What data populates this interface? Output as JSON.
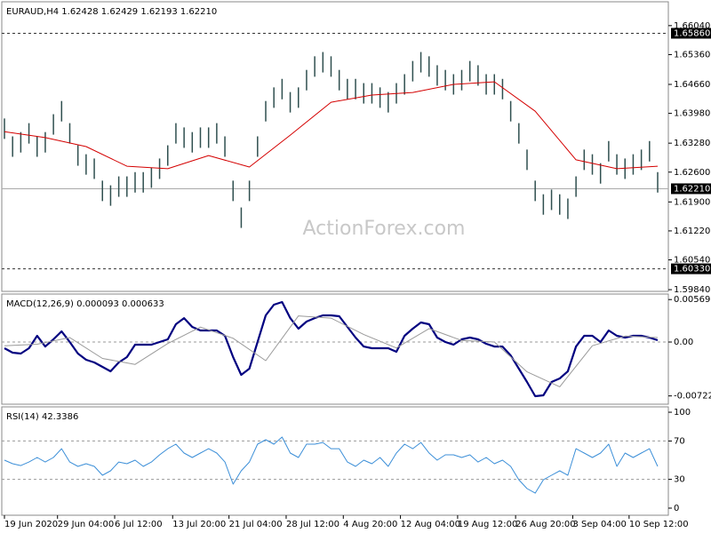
{
  "chart_data": [
    {
      "type": "ohlc",
      "title": "EURAUD,H4  1.62428 1.62429 1.62193 1.62210",
      "watermark": "ActionForex.com",
      "color": "#2f4f4f",
      "xlim": [
        0,
        80
      ],
      "ylim": [
        1.598,
        1.666
      ],
      "yticks": [
        {
          "value": 1.6604,
          "label": "1.66040"
        },
        {
          "value": 1.6536,
          "label": "1.65360"
        },
        {
          "value": 1.6466,
          "label": "1.64660"
        },
        {
          "value": 1.6398,
          "label": "1.63980"
        },
        {
          "value": 1.6328,
          "label": "1.63280"
        },
        {
          "value": 1.626,
          "label": "1.62600"
        },
        {
          "value": 1.619,
          "label": "1.61900"
        },
        {
          "value": 1.6122,
          "label": "1.61220"
        },
        {
          "value": 1.6054,
          "label": "1.60540"
        },
        {
          "value": 1.5984,
          "label": "1.59840"
        }
      ],
      "levels": [
        {
          "value": 1.6586,
          "label": "1.65860"
        },
        {
          "value": 1.6033,
          "label": "1.60330"
        }
      ],
      "current": {
        "value": 1.6221,
        "label": "1.62210"
      },
      "high": [
        1.6386,
        1.6344,
        1.6354,
        1.6375,
        1.6344,
        1.6354,
        1.6396,
        1.6427,
        1.6375,
        1.6323,
        1.6302,
        1.6292,
        1.624,
        1.6229,
        1.625,
        1.625,
        1.626,
        1.626,
        1.6271,
        1.6292,
        1.6323,
        1.6375,
        1.6365,
        1.6354,
        1.6365,
        1.6365,
        1.6375,
        1.6344,
        1.624,
        1.6177,
        1.624,
        1.6344,
        1.6427,
        1.6459,
        1.6479,
        1.6448,
        1.6459,
        1.65,
        1.6532,
        1.6542,
        1.6532,
        1.65,
        1.6479,
        1.6479,
        1.6469,
        1.6469,
        1.6459,
        1.6448,
        1.6469,
        1.649,
        1.6521,
        1.6542,
        1.6532,
        1.6511,
        1.65,
        1.649,
        1.65,
        1.6521,
        1.6511,
        1.649,
        1.649,
        1.6479,
        1.6427,
        1.6375,
        1.6313,
        1.624,
        1.6208,
        1.6219,
        1.6208,
        1.6198,
        1.625,
        1.6313,
        1.6302,
        1.6281,
        1.6333,
        1.6302,
        1.6292,
        1.6302,
        1.6313,
        1.6333,
        1.626
      ],
      "low": [
        1.6338,
        1.6296,
        1.6306,
        1.6327,
        1.6296,
        1.6306,
        1.6348,
        1.6379,
        1.6327,
        1.6275,
        1.6254,
        1.6244,
        1.6192,
        1.6181,
        1.6202,
        1.6202,
        1.6212,
        1.6212,
        1.6223,
        1.6244,
        1.6275,
        1.6327,
        1.6317,
        1.6306,
        1.6317,
        1.6317,
        1.6327,
        1.6296,
        1.6192,
        1.6129,
        1.6192,
        1.6296,
        1.6379,
        1.6411,
        1.6431,
        1.64,
        1.6411,
        1.6452,
        1.6484,
        1.6494,
        1.6484,
        1.6452,
        1.6431,
        1.6431,
        1.6421,
        1.6421,
        1.6411,
        1.64,
        1.6421,
        1.6442,
        1.6473,
        1.6494,
        1.6484,
        1.6463,
        1.6452,
        1.6442,
        1.6452,
        1.6473,
        1.6463,
        1.6442,
        1.6442,
        1.6431,
        1.6379,
        1.6327,
        1.6265,
        1.6192,
        1.616,
        1.6171,
        1.616,
        1.615,
        1.6202,
        1.6265,
        1.6254,
        1.6233,
        1.6285,
        1.6254,
        1.6244,
        1.6254,
        1.6265,
        1.6285,
        1.6212
      ],
      "series": [
        {
          "color": "#d40000",
          "x": [
            0,
            5,
            10,
            15,
            20,
            25,
            30,
            35,
            40,
            45,
            50,
            55,
            60,
            65,
            70,
            75,
            80
          ],
          "values": [
            1.6355,
            1.6341,
            1.632,
            1.6274,
            1.6268,
            1.6299,
            1.6272,
            1.6347,
            1.6424,
            1.6441,
            1.6447,
            1.6466,
            1.6472,
            1.6403,
            1.6289,
            1.6268,
            1.6274
          ]
        }
      ]
    },
    {
      "type": "line",
      "title": "MACD(12,26,9) 0.000093 0.000633",
      "xlim": [
        0,
        80
      ],
      "ylim": [
        -0.00833,
        0.00643
      ],
      "yticks": [
        {
          "value": 0.00569,
          "label": "0.00569"
        },
        {
          "value": 0,
          "label": "0.00"
        },
        {
          "value": -0.00722,
          "label": "-0.00722"
        }
      ],
      "dashed": [
        0
      ],
      "series": [
        {
          "color": "#000080",
          "width": 2.2,
          "values": [
            -0.00083,
            -0.00143,
            -0.00155,
            -0.00083,
            0.00083,
            -0.0006,
            0.00036,
            0.00143,
            0,
            -0.00155,
            -0.00238,
            -0.00274,
            -0.00333,
            -0.00393,
            -0.00274,
            -0.00202,
            -0.00036,
            -0.00036,
            -0.00036,
            0,
            0.00036,
            0.00238,
            0.00321,
            0.00202,
            0.00155,
            0.00155,
            0.00155,
            0.00083,
            -0.00202,
            -0.0044,
            -0.00357,
            0,
            0.00357,
            0.005,
            0.00536,
            0.00321,
            0.00179,
            0.00274,
            0.00321,
            0.00357,
            0.00357,
            0.00345,
            0.00202,
            0.0006,
            -0.0006,
            -0.00083,
            -0.00083,
            -0.00083,
            -0.00131,
            0.00083,
            0.00179,
            0.00262,
            0.00238,
            0.0006,
            0,
            -0.00036,
            0.00036,
            0.0006,
            0.00036,
            -0.00024,
            -0.0006,
            -0.0006,
            -0.00179,
            -0.00357,
            -0.00536,
            -0.00726,
            -0.00714,
            -0.00536,
            -0.00488,
            -0.00393,
            -0.0006,
            0.00083,
            0.00083,
            0,
            0.00155,
            0.00083,
            0.0006,
            0.00083,
            0.00083,
            0.0006,
            0.00024
          ]
        },
        {
          "color": "#9a9a9a",
          "width": 1,
          "x": [
            0,
            4,
            8,
            12,
            16,
            20,
            24,
            28,
            32,
            36,
            40,
            44,
            48,
            52,
            56,
            60,
            64,
            68,
            72,
            76,
            80
          ],
          "values": [
            -0.0005,
            -0.0003,
            0.0006,
            -0.0022,
            -0.003,
            -0.0002,
            0.002,
            0.0005,
            -0.0025,
            0.0035,
            0.0032,
            0.001,
            -0.0008,
            0.0018,
            0.0002,
            0,
            -0.004,
            -0.006,
            -0.0005,
            0.0008,
            0.0006
          ]
        }
      ]
    },
    {
      "type": "line",
      "title": "RSI(14) 42.3386",
      "xlim": [
        0,
        80
      ],
      "ylim": [
        -7.4,
        105.6
      ],
      "yticks": [
        100,
        70,
        30,
        0
      ],
      "dashed": [
        70,
        30
      ],
      "xticks": [
        {
          "value": 0,
          "label": "19 Jun 2020"
        },
        {
          "value": 6.5,
          "label": "29 Jun 04:00"
        },
        {
          "value": 13.5,
          "label": "6 Jul 12:00"
        },
        {
          "value": 20.6,
          "label": "13 Jul 20:00"
        },
        {
          "value": 27.5,
          "label": "21 Jul 04:00"
        },
        {
          "value": 34.5,
          "label": "28 Jul 12:00"
        },
        {
          "value": 41.5,
          "label": "4 Aug 20:00"
        },
        {
          "value": 48.5,
          "label": "12 Aug 04:00"
        },
        {
          "value": 55.5,
          "label": "19 Aug 12:00"
        },
        {
          "value": 62.6,
          "label": "26 Aug 20:00"
        },
        {
          "value": 69.6,
          "label": "3 Sep 04:00"
        },
        {
          "value": 76.5,
          "label": "10 Sep 12:00"
        }
      ],
      "series": [
        {
          "color": "#3c8fd8",
          "width": 1,
          "values": [
            50.0,
            46.3,
            44.4,
            48.1,
            52.8,
            48.1,
            52.8,
            62.0,
            48.1,
            43.5,
            46.3,
            43.5,
            34.3,
            38.9,
            48.1,
            46.3,
            50.0,
            43.5,
            48.1,
            55.6,
            62.0,
            66.7,
            57.4,
            52.8,
            57.4,
            62.0,
            57.4,
            48.1,
            25.0,
            38.9,
            48.1,
            66.7,
            71.3,
            66.7,
            74.1,
            57.4,
            52.8,
            66.7,
            66.7,
            68.5,
            62.0,
            62.0,
            48.1,
            43.5,
            50.0,
            46.3,
            52.8,
            43.5,
            57.4,
            66.7,
            62.0,
            68.5,
            57.4,
            50.0,
            55.6,
            55.6,
            52.8,
            55.6,
            48.1,
            52.8,
            46.3,
            50.0,
            43.5,
            29.6,
            20.4,
            15.7,
            29.6,
            34.3,
            38.9,
            34.3,
            62.0,
            57.4,
            52.8,
            57.4,
            66.7,
            43.5,
            57.4,
            52.8,
            57.4,
            62.0,
            43.5
          ]
        }
      ]
    }
  ]
}
